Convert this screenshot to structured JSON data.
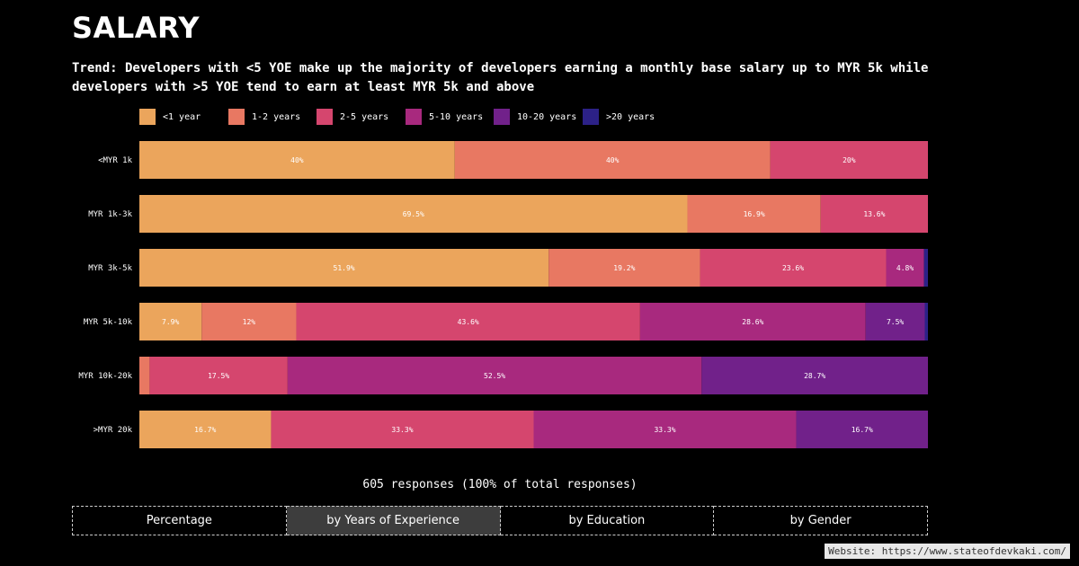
{
  "page": {
    "title": "SALARY",
    "trend": "Trend: Developers with <5 YOE make up the majority of developers earning a monthly base salary up to MYR 5k while developers with >5 YOE tend to earn at least MYR 5k and above",
    "responses": "605 responses (100% of total responses)",
    "website": "Website: https://www.stateofdevkaki.com/"
  },
  "tabs": [
    {
      "label": "Percentage",
      "active": false
    },
    {
      "label": "by Years of Experience",
      "active": true
    },
    {
      "label": "by Education",
      "active": false
    },
    {
      "label": "by Gender",
      "active": false
    }
  ],
  "chart_data": {
    "type": "bar",
    "orientation": "horizontal",
    "stacked": true,
    "categories": [
      "<MYR 1k",
      "MYR 1k-3k",
      "MYR 3k-5k",
      "MYR 5k-10k",
      "MYR 10k-20k",
      ">MYR 20k"
    ],
    "legend_position": "top",
    "xlim": [
      0,
      100
    ],
    "series": [
      {
        "name": "<1 year",
        "color": "#eba55c",
        "values": [
          40,
          69.5,
          51.9,
          7.9,
          0,
          16.7
        ],
        "labels": [
          "40%",
          "69.5%",
          "51.9%",
          "7.9%",
          "",
          "16.7%"
        ]
      },
      {
        "name": "1-2 years",
        "color": "#e87862",
        "values": [
          40,
          16.9,
          19.2,
          12,
          1.3,
          0
        ],
        "labels": [
          "40%",
          "16.9%",
          "19.2%",
          "12%",
          "",
          ""
        ]
      },
      {
        "name": "2-5 years",
        "color": "#d5466e",
        "values": [
          20,
          13.6,
          23.6,
          43.6,
          17.5,
          33.3
        ],
        "labels": [
          "20%",
          "13.6%",
          "23.6%",
          "43.6%",
          "17.5%",
          "33.3%"
        ]
      },
      {
        "name": "5-10 years",
        "color": "#a8297e",
        "values": [
          0,
          0,
          4.8,
          28.6,
          52.5,
          33.3
        ],
        "labels": [
          "",
          "",
          "4.8%",
          "28.6%",
          "52.5%",
          "33.3%"
        ]
      },
      {
        "name": "10-20 years",
        "color": "#71218a",
        "values": [
          0,
          0,
          0,
          7.5,
          28.7,
          16.7
        ],
        "labels": [
          "",
          "",
          "",
          "7.5%",
          "28.7%",
          "16.7%"
        ]
      },
      {
        "name": ">20 years",
        "color": "#2c2187",
        "values": [
          0,
          0,
          0.5,
          0.4,
          0,
          0
        ],
        "labels": [
          "",
          "",
          "",
          "",
          "",
          ""
        ]
      }
    ]
  }
}
